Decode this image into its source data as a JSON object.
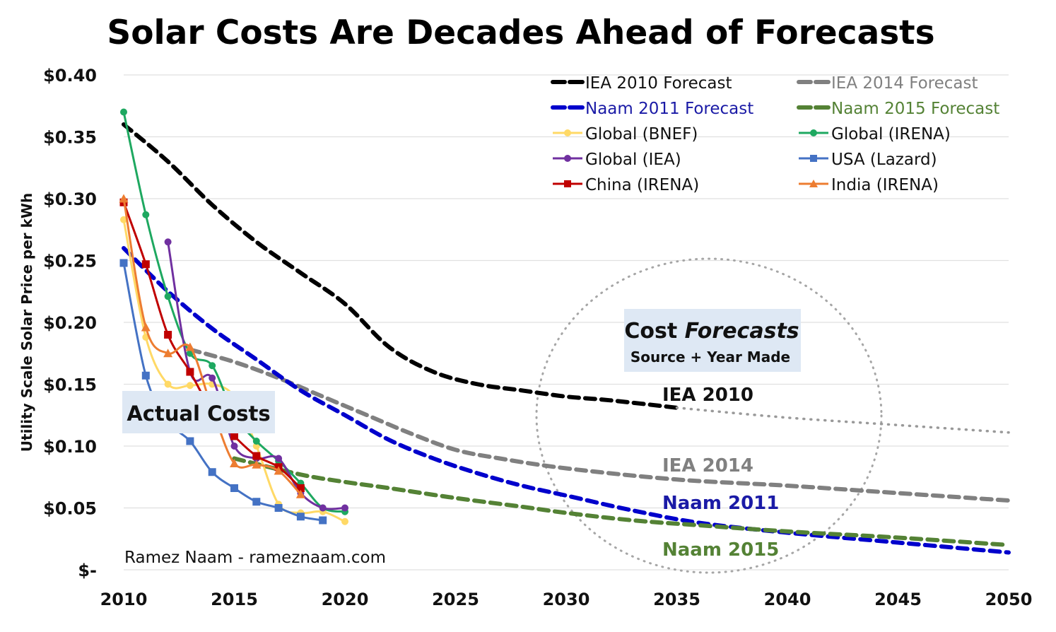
{
  "chart_data": {
    "type": "line",
    "title": "Solar Costs Are Decades Ahead of Forecasts",
    "xlabel": "",
    "ylabel": "Utility Scale Solar Price per kWh",
    "xlim": [
      2010,
      2050
    ],
    "ylim": [
      0,
      0.4
    ],
    "x_ticks": [
      2010,
      2015,
      2020,
      2025,
      2030,
      2035,
      2040,
      2045,
      2050
    ],
    "y_ticks": [
      0,
      0.05,
      0.1,
      0.15,
      0.2,
      0.25,
      0.3,
      0.35,
      0.4
    ],
    "y_tick_labels": [
      "$-",
      "$0.05",
      "$0.10",
      "$0.15",
      "$0.20",
      "$0.25",
      "$0.30",
      "$0.35",
      "$0.40"
    ],
    "grid": "horizontal",
    "legend_position": "top-right",
    "series": [
      {
        "name": "IEA 2010 Forecast",
        "style": "dashed",
        "color": "#000000",
        "text_color": "#111111",
        "x": [
          2010,
          2012,
          2014,
          2016,
          2018,
          2020,
          2022,
          2024,
          2026,
          2028,
          2030,
          2032,
          2035
        ],
        "values": [
          0.36,
          0.33,
          0.295,
          0.265,
          0.24,
          0.215,
          0.18,
          0.16,
          0.15,
          0.145,
          0.14,
          0.137,
          0.131
        ],
        "extension": {
          "style": "dotted",
          "color": "#999999",
          "x": [
            2035,
            2040,
            2045,
            2050
          ],
          "values": [
            0.131,
            0.123,
            0.117,
            0.111
          ]
        }
      },
      {
        "name": "IEA 2014 Forecast",
        "style": "dashed",
        "color": "#808080",
        "text_color": "#808080",
        "x": [
          2013,
          2015,
          2017,
          2019,
          2021,
          2023,
          2025,
          2027,
          2030,
          2035,
          2040,
          2045,
          2050
        ],
        "values": [
          0.178,
          0.168,
          0.155,
          0.14,
          0.125,
          0.11,
          0.097,
          0.09,
          0.082,
          0.073,
          0.068,
          0.062,
          0.056
        ]
      },
      {
        "name": "Naam 2011 Forecast",
        "style": "dashed",
        "color": "#0000CC",
        "text_color": "#1a1aa6",
        "x": [
          2010,
          2012,
          2014,
          2016,
          2018,
          2020,
          2022,
          2024,
          2026,
          2028,
          2030,
          2033,
          2036,
          2040,
          2045,
          2050
        ],
        "values": [
          0.26,
          0.225,
          0.195,
          0.17,
          0.145,
          0.125,
          0.105,
          0.09,
          0.078,
          0.068,
          0.06,
          0.048,
          0.038,
          0.03,
          0.022,
          0.014
        ]
      },
      {
        "name": "Naam 2015 Forecast",
        "style": "dashed",
        "color": "#548235",
        "text_color": "#548235",
        "x": [
          2015,
          2018,
          2020,
          2022,
          2025,
          2028,
          2030,
          2033,
          2036,
          2040,
          2045,
          2050
        ],
        "values": [
          0.09,
          0.077,
          0.071,
          0.066,
          0.058,
          0.051,
          0.046,
          0.04,
          0.036,
          0.031,
          0.026,
          0.02
        ]
      },
      {
        "name": "Global (BNEF)",
        "style": "solid",
        "marker": "circle",
        "color": "#FFD966",
        "text_color": "#111111",
        "x": [
          2010,
          2011,
          2012,
          2013,
          2014,
          2015,
          2016,
          2017,
          2018,
          2019,
          2020
        ],
        "values": [
          0.283,
          0.188,
          0.15,
          0.149,
          0.15,
          0.14,
          0.1,
          0.053,
          0.046,
          0.047,
          0.039
        ]
      },
      {
        "name": "Global (IRENA)",
        "style": "solid",
        "marker": "circle",
        "color": "#1EA860",
        "text_color": "#111111",
        "x": [
          2010,
          2011,
          2012,
          2013,
          2014,
          2015,
          2016,
          2017,
          2018,
          2019,
          2020
        ],
        "values": [
          0.37,
          0.287,
          0.221,
          0.175,
          0.165,
          0.125,
          0.104,
          0.088,
          0.07,
          0.05,
          0.047
        ]
      },
      {
        "name": "Global (IEA)",
        "style": "solid",
        "marker": "circle",
        "color": "#7030A0",
        "text_color": "#111111",
        "x": [
          2012,
          2013,
          2014,
          2015,
          2016,
          2017,
          2018,
          2019,
          2020
        ],
        "values": [
          0.265,
          0.16,
          0.155,
          0.1,
          0.09,
          0.09,
          0.062,
          0.05,
          0.05
        ]
      },
      {
        "name": "USA (Lazard)",
        "style": "solid",
        "marker": "square",
        "color": "#4472C4",
        "text_color": "#111111",
        "x": [
          2010,
          2011,
          2012,
          2013,
          2014,
          2015,
          2016,
          2017,
          2018,
          2019
        ],
        "values": [
          0.248,
          0.157,
          0.12,
          0.104,
          0.079,
          0.066,
          0.055,
          0.05,
          0.043,
          0.04
        ]
      },
      {
        "name": "China (IRENA)",
        "style": "solid",
        "marker": "square",
        "color": "#C00000",
        "text_color": "#111111",
        "x": [
          2010,
          2011,
          2012,
          2013,
          2014,
          2015,
          2016,
          2017,
          2018
        ],
        "values": [
          0.297,
          0.247,
          0.19,
          0.16,
          0.128,
          0.108,
          0.092,
          0.083,
          0.066
        ]
      },
      {
        "name": "India (IRENA)",
        "style": "solid",
        "marker": "triangle",
        "color": "#ED7D31",
        "text_color": "#111111",
        "x": [
          2010,
          2011,
          2012,
          2013,
          2014,
          2015,
          2016,
          2017,
          2018
        ],
        "values": [
          0.3,
          0.196,
          0.175,
          0.18,
          0.13,
          0.086,
          0.085,
          0.08,
          0.061
        ]
      }
    ],
    "annotations": {
      "actual_costs": "Actual Costs",
      "forecasts_title_regular": "Cost",
      "forecasts_title_italic": "Forecasts",
      "forecasts_subtitle": "Source + Year Made",
      "label_iea2010": "IEA 2010",
      "label_iea2014": "IEA 2014",
      "label_naam2011": "Naam 2011",
      "label_naam2015": "Naam 2015",
      "credit": "Ramez Naam - rameznaam.com"
    },
    "annotation_colors": {
      "box_fill": "#DEE8F4",
      "circle": "#A6A6A6",
      "grid": "#E0E0E0"
    }
  }
}
